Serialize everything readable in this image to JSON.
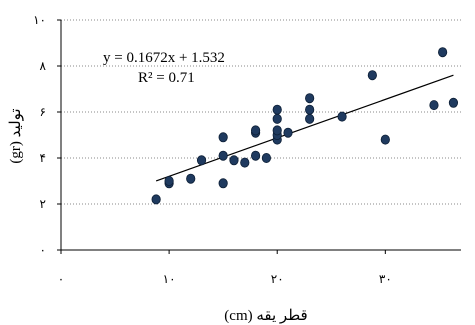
{
  "chart_data": {
    "type": "scatter",
    "title": "",
    "xlabel": "قطر یقه (cm)",
    "ylabel": "تولید (gr)",
    "xlim": [
      0,
      37
    ],
    "ylim": [
      0,
      10
    ],
    "x_ticks": [
      {
        "value": 0,
        "label": "۰"
      },
      {
        "value": 10,
        "label": "۱۰"
      },
      {
        "value": 20,
        "label": "۲۰"
      },
      {
        "value": 30,
        "label": "۳۰"
      }
    ],
    "y_ticks": [
      {
        "value": 0,
        "label": "۰"
      },
      {
        "value": 2,
        "label": "۲"
      },
      {
        "value": 4,
        "label": "۴"
      },
      {
        "value": 6,
        "label": "۶"
      },
      {
        "value": 8,
        "label": "۸"
      },
      {
        "value": 10,
        "label": "۱۰"
      }
    ],
    "grid": "horizontal-dotted",
    "marker_color": "#1f3a5f",
    "trendline_color": "#000000",
    "points": [
      {
        "x": 8.8,
        "y": 2.2
      },
      {
        "x": 10.0,
        "y": 2.9
      },
      {
        "x": 10.0,
        "y": 3.0
      },
      {
        "x": 12.0,
        "y": 3.1
      },
      {
        "x": 13.0,
        "y": 3.9
      },
      {
        "x": 15.0,
        "y": 2.9
      },
      {
        "x": 15.0,
        "y": 4.1
      },
      {
        "x": 15.0,
        "y": 4.9
      },
      {
        "x": 16.0,
        "y": 3.9
      },
      {
        "x": 17.0,
        "y": 3.8
      },
      {
        "x": 18.0,
        "y": 4.1
      },
      {
        "x": 18.0,
        "y": 5.1
      },
      {
        "x": 18.0,
        "y": 5.2
      },
      {
        "x": 19.0,
        "y": 4.0
      },
      {
        "x": 20.0,
        "y": 4.8
      },
      {
        "x": 20.0,
        "y": 5.0
      },
      {
        "x": 20.0,
        "y": 5.2
      },
      {
        "x": 20.0,
        "y": 5.7
      },
      {
        "x": 20.0,
        "y": 6.1
      },
      {
        "x": 21.0,
        "y": 5.1
      },
      {
        "x": 23.0,
        "y": 5.7
      },
      {
        "x": 23.0,
        "y": 6.1
      },
      {
        "x": 23.0,
        "y": 6.6
      },
      {
        "x": 26.0,
        "y": 5.8
      },
      {
        "x": 28.8,
        "y": 7.6
      },
      {
        "x": 30.0,
        "y": 4.8
      },
      {
        "x": 34.5,
        "y": 6.3
      },
      {
        "x": 35.3,
        "y": 8.6
      },
      {
        "x": 36.3,
        "y": 6.4
      }
    ],
    "trendline": {
      "slope": 0.1672,
      "intercept": 1.532,
      "x_range": [
        8.8,
        36.3
      ],
      "equation_label": "y = 0.1672x + 1.532",
      "r2_label": "R² = 0.71"
    }
  }
}
